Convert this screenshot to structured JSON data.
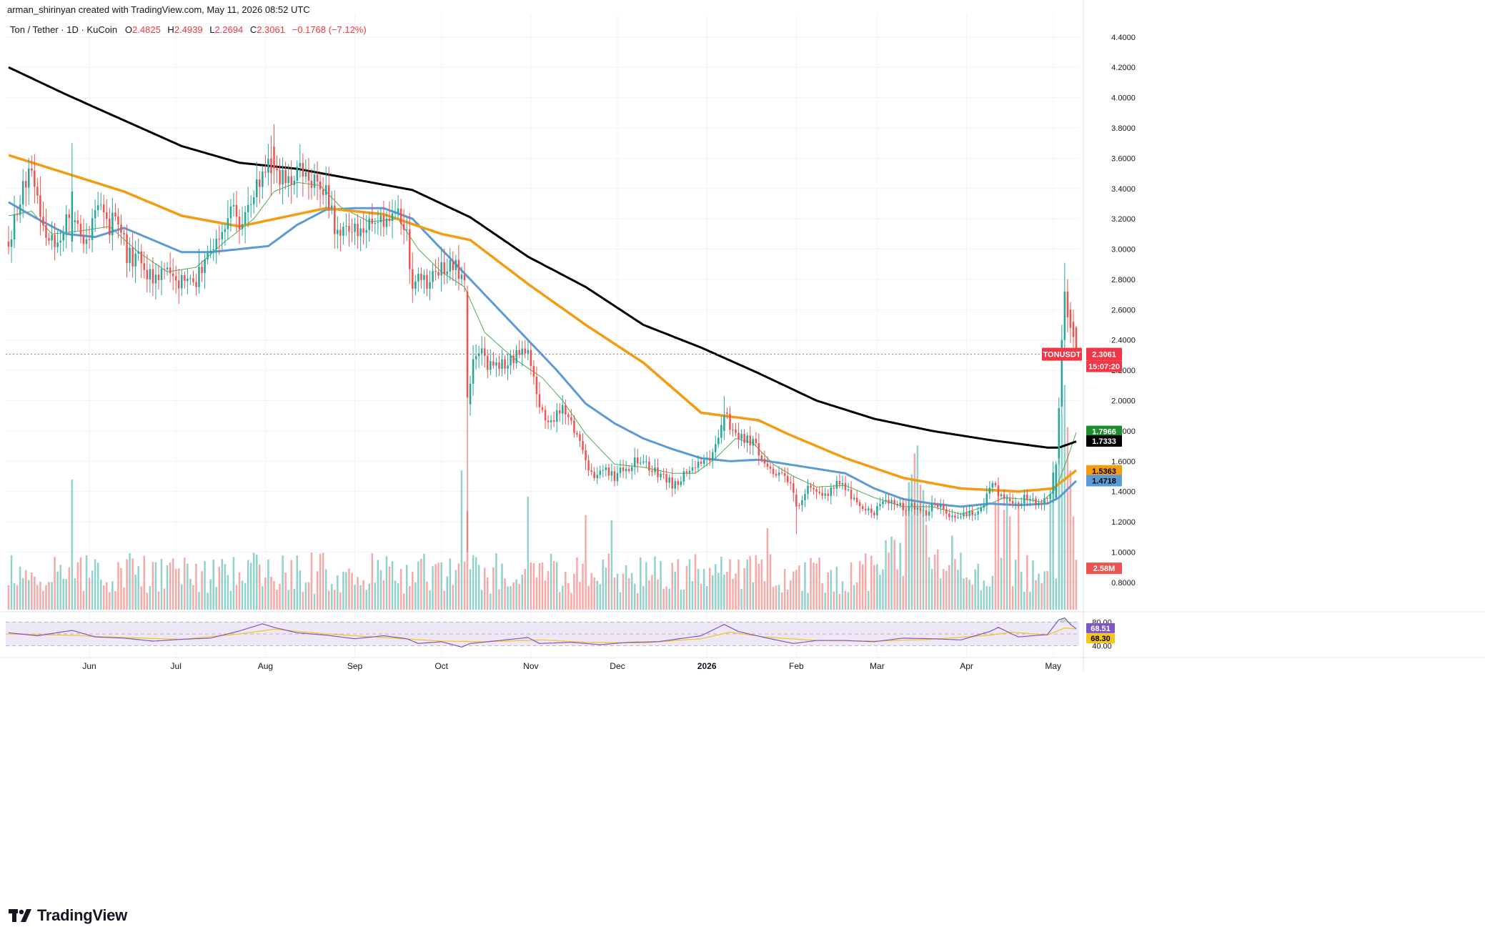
{
  "header": {
    "credit": "arman_shirinyan created with TradingView.com, May 11, 2026 08:52 UTC"
  },
  "symbol": {
    "title": "Ton / Tether · 1D · KuCoin",
    "open_label": "O",
    "open": "2.4825",
    "high_label": "H",
    "high": "2.4939",
    "low_label": "L",
    "low": "2.2694",
    "close_label": "C",
    "close": "2.3061",
    "change": "−0.1768 (−7.12%)"
  },
  "logo": {
    "text": "TradingView",
    "icon": "tradingview-logo-icon"
  },
  "colors": {
    "up": "#26a69a",
    "down": "#ef5350",
    "ma_fast": "#4caf50",
    "ma_mid": "#5b9bd5",
    "ma_orange": "#f39c12",
    "ma_200": "#000000",
    "rsi": "#7e57c2",
    "rsi_ma": "#f5c518",
    "rsi_band": "#ede7f6"
  },
  "chart_data": {
    "type": "candlestick",
    "price_axis": {
      "ticks": [
        "4.4000",
        "4.2000",
        "4.0000",
        "3.8000",
        "3.6000",
        "3.4000",
        "3.2000",
        "3.0000",
        "2.8000",
        "2.6000",
        "2.4000",
        "2.2000",
        "2.0000",
        "1.8000",
        "1.6000",
        "1.4000",
        "1.2000",
        "1.0000",
        "0.8000"
      ],
      "range": [
        0.62,
        4.55
      ]
    },
    "time_axis": {
      "labels": [
        "Jun",
        "Jul",
        "Aug",
        "Sep",
        "Oct",
        "Nov",
        "Dec",
        "2026",
        "Feb",
        "Mar",
        "Apr",
        "May"
      ],
      "label_index": [
        28,
        58,
        89,
        120,
        150,
        181,
        211,
        242,
        273,
        301,
        332,
        362
      ],
      "bold_label": "2026"
    },
    "price_path": [
      [
        0,
        3.05
      ],
      [
        4,
        3.3
      ],
      [
        7,
        3.55
      ],
      [
        10,
        3.3
      ],
      [
        14,
        3.05
      ],
      [
        18,
        3.05
      ],
      [
        20,
        3.2
      ],
      [
        24,
        3.1
      ],
      [
        28,
        3.1
      ],
      [
        31,
        3.3
      ],
      [
        34,
        3.15
      ],
      [
        38,
        3.2
      ],
      [
        41,
        2.95
      ],
      [
        45,
        2.95
      ],
      [
        50,
        2.8
      ],
      [
        53,
        2.85
      ],
      [
        56,
        2.8
      ],
      [
        60,
        2.8
      ],
      [
        64,
        2.75
      ],
      [
        69,
        2.95
      ],
      [
        73,
        3.1
      ],
      [
        77,
        3.25
      ],
      [
        80,
        3.2
      ],
      [
        83,
        3.3
      ],
      [
        86,
        3.4
      ],
      [
        89,
        3.55
      ],
      [
        91,
        3.65
      ],
      [
        93,
        3.5
      ],
      [
        95,
        3.45
      ],
      [
        98,
        3.4
      ],
      [
        101,
        3.5
      ],
      [
        104,
        3.5
      ],
      [
        107,
        3.45
      ],
      [
        110,
        3.35
      ],
      [
        113,
        3.15
      ],
      [
        116,
        3.15
      ],
      [
        120,
        3.1
      ],
      [
        124,
        3.15
      ],
      [
        128,
        3.15
      ],
      [
        131,
        3.2
      ],
      [
        135,
        3.25
      ],
      [
        138,
        3.1
      ],
      [
        140,
        2.75
      ],
      [
        142,
        2.85
      ],
      [
        145,
        2.75
      ],
      [
        148,
        2.85
      ],
      [
        152,
        2.85
      ],
      [
        155,
        2.9
      ],
      [
        158,
        2.8
      ],
      [
        159,
        2.0
      ],
      [
        161,
        2.3
      ],
      [
        164,
        2.3
      ],
      [
        168,
        2.2
      ],
      [
        172,
        2.25
      ],
      [
        176,
        2.3
      ],
      [
        179,
        2.35
      ],
      [
        181,
        2.25
      ],
      [
        183,
        2.05
      ],
      [
        185,
        1.9
      ],
      [
        188,
        1.85
      ],
      [
        192,
        1.95
      ],
      [
        195,
        1.85
      ],
      [
        198,
        1.75
      ],
      [
        200,
        1.6
      ],
      [
        203,
        1.5
      ],
      [
        206,
        1.55
      ],
      [
        210,
        1.5
      ],
      [
        214,
        1.55
      ],
      [
        217,
        1.6
      ],
      [
        220,
        1.6
      ],
      [
        223,
        1.55
      ],
      [
        227,
        1.5
      ],
      [
        230,
        1.45
      ],
      [
        234,
        1.5
      ],
      [
        238,
        1.55
      ],
      [
        242,
        1.6
      ],
      [
        245,
        1.7
      ],
      [
        248,
        1.9
      ],
      [
        250,
        1.85
      ],
      [
        253,
        1.75
      ],
      [
        256,
        1.75
      ],
      [
        259,
        1.7
      ],
      [
        262,
        1.6
      ],
      [
        265,
        1.55
      ],
      [
        268,
        1.5
      ],
      [
        271,
        1.45
      ],
      [
        273,
        1.3
      ],
      [
        275,
        1.35
      ],
      [
        278,
        1.45
      ],
      [
        281,
        1.4
      ],
      [
        284,
        1.35
      ],
      [
        287,
        1.5
      ],
      [
        290,
        1.4
      ],
      [
        293,
        1.35
      ],
      [
        296,
        1.3
      ],
      [
        299,
        1.25
      ],
      [
        302,
        1.3
      ],
      [
        305,
        1.35
      ],
      [
        308,
        1.3
      ],
      [
        311,
        1.3
      ],
      [
        314,
        1.3
      ],
      [
        317,
        1.25
      ],
      [
        320,
        1.3
      ],
      [
        323,
        1.3
      ],
      [
        326,
        1.25
      ],
      [
        329,
        1.22
      ],
      [
        332,
        1.25
      ],
      [
        335,
        1.25
      ],
      [
        338,
        1.3
      ],
      [
        340,
        1.45
      ],
      [
        343,
        1.4
      ],
      [
        346,
        1.35
      ],
      [
        349,
        1.3
      ],
      [
        352,
        1.35
      ],
      [
        355,
        1.35
      ],
      [
        358,
        1.32
      ],
      [
        361,
        1.4
      ],
      [
        363,
        1.65
      ],
      [
        364,
        1.95
      ],
      [
        365,
        2.4
      ],
      [
        366,
        2.7
      ],
      [
        367,
        2.55
      ],
      [
        368,
        2.48
      ],
      [
        369,
        2.42
      ],
      [
        370,
        2.31
      ]
    ],
    "last_price": {
      "label": "TONUSDT",
      "value": "2.3061",
      "countdown": "15:07:20"
    },
    "moving_averages": [
      {
        "period": 20,
        "color": "#4caf50",
        "last": "1.7966"
      },
      {
        "period": 50,
        "color": "#5b9bd5",
        "last": "1.4718"
      },
      {
        "period": 100,
        "color": "#f39c12",
        "last": "1.5363"
      },
      {
        "period": 200,
        "color": "#000000",
        "last": "1.7333"
      }
    ],
    "ma200_path": [
      [
        0,
        4.2
      ],
      [
        20,
        4.02
      ],
      [
        40,
        3.85
      ],
      [
        60,
        3.68
      ],
      [
        80,
        3.57
      ],
      [
        100,
        3.53
      ],
      [
        120,
        3.46
      ],
      [
        140,
        3.39
      ],
      [
        160,
        3.21
      ],
      [
        180,
        2.95
      ],
      [
        200,
        2.75
      ],
      [
        220,
        2.5
      ],
      [
        240,
        2.35
      ],
      [
        260,
        2.18
      ],
      [
        280,
        2.0
      ],
      [
        300,
        1.88
      ],
      [
        320,
        1.8
      ],
      [
        340,
        1.74
      ],
      [
        360,
        1.69
      ],
      [
        364,
        1.69
      ],
      [
        370,
        1.73
      ]
    ],
    "ma100_path": [
      [
        0,
        3.62
      ],
      [
        20,
        3.5
      ],
      [
        40,
        3.38
      ],
      [
        60,
        3.22
      ],
      [
        80,
        3.15
      ],
      [
        100,
        3.23
      ],
      [
        110,
        3.27
      ],
      [
        130,
        3.23
      ],
      [
        150,
        3.1
      ],
      [
        160,
        3.06
      ],
      [
        180,
        2.77
      ],
      [
        200,
        2.5
      ],
      [
        220,
        2.25
      ],
      [
        240,
        1.92
      ],
      [
        260,
        1.87
      ],
      [
        270,
        1.78
      ],
      [
        290,
        1.62
      ],
      [
        310,
        1.49
      ],
      [
        330,
        1.42
      ],
      [
        350,
        1.4
      ],
      [
        362,
        1.42
      ],
      [
        366,
        1.48
      ],
      [
        370,
        1.54
      ]
    ],
    "ma50_path": [
      [
        0,
        3.31
      ],
      [
        10,
        3.2
      ],
      [
        20,
        3.1
      ],
      [
        30,
        3.08
      ],
      [
        40,
        3.14
      ],
      [
        50,
        3.06
      ],
      [
        60,
        2.98
      ],
      [
        70,
        2.98
      ],
      [
        80,
        3.0
      ],
      [
        90,
        3.02
      ],
      [
        100,
        3.16
      ],
      [
        110,
        3.26
      ],
      [
        120,
        3.27
      ],
      [
        130,
        3.27
      ],
      [
        140,
        3.2
      ],
      [
        150,
        3.0
      ],
      [
        160,
        2.8
      ],
      [
        170,
        2.6
      ],
      [
        180,
        2.4
      ],
      [
        190,
        2.2
      ],
      [
        200,
        1.98
      ],
      [
        210,
        1.85
      ],
      [
        220,
        1.75
      ],
      [
        230,
        1.68
      ],
      [
        240,
        1.62
      ],
      [
        250,
        1.6
      ],
      [
        260,
        1.61
      ],
      [
        270,
        1.58
      ],
      [
        280,
        1.55
      ],
      [
        290,
        1.52
      ],
      [
        300,
        1.42
      ],
      [
        310,
        1.35
      ],
      [
        320,
        1.32
      ],
      [
        330,
        1.3
      ],
      [
        340,
        1.32
      ],
      [
        350,
        1.31
      ],
      [
        360,
        1.32
      ],
      [
        364,
        1.36
      ],
      [
        370,
        1.47
      ]
    ],
    "ma20_path": [
      [
        0,
        3.22
      ],
      [
        8,
        3.25
      ],
      [
        15,
        3.1
      ],
      [
        25,
        3.12
      ],
      [
        35,
        3.15
      ],
      [
        45,
        2.98
      ],
      [
        55,
        2.85
      ],
      [
        65,
        2.88
      ],
      [
        75,
        3.05
      ],
      [
        85,
        3.2
      ],
      [
        92,
        3.38
      ],
      [
        100,
        3.44
      ],
      [
        108,
        3.42
      ],
      [
        115,
        3.28
      ],
      [
        125,
        3.18
      ],
      [
        135,
        3.2
      ],
      [
        142,
        3.0
      ],
      [
        150,
        2.85
      ],
      [
        158,
        2.75
      ],
      [
        165,
        2.45
      ],
      [
        175,
        2.28
      ],
      [
        185,
        2.15
      ],
      [
        192,
        2.0
      ],
      [
        200,
        1.78
      ],
      [
        210,
        1.58
      ],
      [
        220,
        1.56
      ],
      [
        230,
        1.52
      ],
      [
        238,
        1.52
      ],
      [
        245,
        1.62
      ],
      [
        252,
        1.75
      ],
      [
        258,
        1.72
      ],
      [
        265,
        1.58
      ],
      [
        272,
        1.5
      ],
      [
        280,
        1.43
      ],
      [
        290,
        1.44
      ],
      [
        300,
        1.36
      ],
      [
        310,
        1.3
      ],
      [
        320,
        1.3
      ],
      [
        330,
        1.25
      ],
      [
        338,
        1.3
      ],
      [
        345,
        1.36
      ],
      [
        352,
        1.35
      ],
      [
        358,
        1.33
      ],
      [
        363,
        1.42
      ],
      [
        367,
        1.62
      ],
      [
        370,
        1.79
      ]
    ],
    "volume": {
      "last_label": "2.58M",
      "range": [
        0,
        10.5
      ]
    },
    "volume_spikes": [
      [
        22,
        9.9
      ],
      [
        157,
        10.6
      ],
      [
        159,
        7.5
      ],
      [
        180,
        8.6
      ],
      [
        200,
        7.2
      ],
      [
        209,
        6.8
      ],
      [
        263,
        6.2
      ],
      [
        311,
        8.3
      ],
      [
        312,
        9.7
      ],
      [
        313,
        10.3
      ],
      [
        314,
        11.9
      ],
      [
        315,
        12.5
      ],
      [
        316,
        9.5
      ],
      [
        317,
        9.1
      ],
      [
        342,
        8.2
      ],
      [
        343,
        9.4
      ],
      [
        345,
        7.6
      ],
      [
        346,
        8.8
      ],
      [
        347,
        7.1
      ],
      [
        350,
        8.1
      ],
      [
        361,
        8.4
      ],
      [
        362,
        9.3
      ],
      [
        364,
        11.6
      ],
      [
        365,
        14.8
      ],
      [
        366,
        17.1
      ],
      [
        367,
        13.9
      ],
      [
        368,
        10.6
      ],
      [
        369,
        7.1
      ],
      [
        370,
        3.8
      ]
    ],
    "rsi": {
      "upper": "80.00",
      "lower": "40.00",
      "value": "68.51",
      "ma_value": "68.30",
      "rsi_path": [
        [
          0,
          62
        ],
        [
          10,
          57
        ],
        [
          22,
          66
        ],
        [
          30,
          55
        ],
        [
          40,
          53
        ],
        [
          50,
          48
        ],
        [
          60,
          51
        ],
        [
          70,
          53
        ],
        [
          80,
          65
        ],
        [
          88,
          77
        ],
        [
          92,
          71
        ],
        [
          100,
          62
        ],
        [
          110,
          58
        ],
        [
          120,
          52
        ],
        [
          130,
          57
        ],
        [
          138,
          52
        ],
        [
          142,
          44
        ],
        [
          150,
          47
        ],
        [
          157,
          38
        ],
        [
          160,
          44
        ],
        [
          170,
          49
        ],
        [
          180,
          54
        ],
        [
          184,
          44
        ],
        [
          195,
          46
        ],
        [
          205,
          42
        ],
        [
          215,
          46
        ],
        [
          225,
          47
        ],
        [
          240,
          57
        ],
        [
          248,
          76
        ],
        [
          253,
          64
        ],
        [
          262,
          54
        ],
        [
          272,
          44
        ],
        [
          280,
          49
        ],
        [
          290,
          49
        ],
        [
          300,
          47
        ],
        [
          310,
          53
        ],
        [
          320,
          52
        ],
        [
          330,
          50
        ],
        [
          340,
          64
        ],
        [
          343,
          71
        ],
        [
          350,
          55
        ],
        [
          360,
          59
        ],
        [
          364,
          84
        ],
        [
          366,
          87
        ],
        [
          368,
          76
        ],
        [
          370,
          68.5
        ]
      ],
      "rsi_ma_path": [
        [
          0,
          60
        ],
        [
          20,
          58
        ],
        [
          40,
          54
        ],
        [
          60,
          51
        ],
        [
          80,
          60
        ],
        [
          92,
          68
        ],
        [
          110,
          60
        ],
        [
          130,
          54
        ],
        [
          150,
          48
        ],
        [
          165,
          47
        ],
        [
          185,
          50
        ],
        [
          200,
          46
        ],
        [
          220,
          45
        ],
        [
          240,
          52
        ],
        [
          250,
          63
        ],
        [
          262,
          55
        ],
        [
          280,
          49
        ],
        [
          300,
          48
        ],
        [
          320,
          51
        ],
        [
          340,
          58
        ],
        [
          348,
          63
        ],
        [
          360,
          58
        ],
        [
          366,
          70
        ],
        [
          370,
          68.3
        ]
      ]
    }
  }
}
